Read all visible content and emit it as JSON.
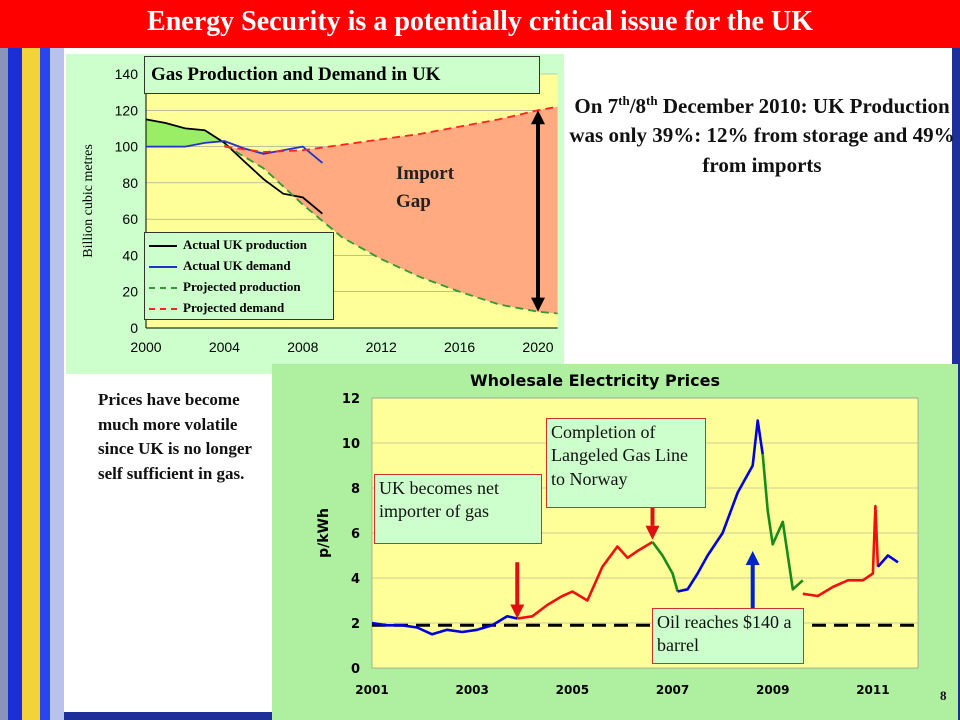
{
  "title": "Energy Security is a potentially critical issue for the UK",
  "note": {
    "pre": "On 7",
    "sup1": "th",
    "slash": "/8",
    "sup2": "th",
    "rest": " December 2010: UK Production was only 39%: 12% from storage and 49% from imports"
  },
  "side_text": "Prices have become much more volatile since UK is no longer self sufficient in gas.",
  "page_number": "8",
  "colors": {
    "title_bg": "#ff0000",
    "chart1_bg": "#ffff99",
    "chart2_bg": "#ffff99",
    "import_gap": "#ffaa80",
    "production_fill": "#99ee66"
  },
  "chart_data": [
    {
      "type": "line",
      "title": "Gas Production and Demand in UK",
      "ylabel": "Billion cubic metres",
      "xlabel": "",
      "xlim": [
        2000,
        2020
      ],
      "ylim": [
        0,
        140
      ],
      "x_ticks": [
        "2000",
        "2004",
        "2008",
        "2012",
        "2016",
        "2020"
      ],
      "y_ticks": [
        "0",
        "20",
        "40",
        "60",
        "80",
        "100",
        "120",
        "140"
      ],
      "legend_position": "bottom-left",
      "annotation": "Import Gap",
      "series": [
        {
          "name": "Actual UK production",
          "color": "#000000",
          "style": "solid",
          "x": [
            2000,
            2001,
            2002,
            2003,
            2004,
            2005,
            2006,
            2007,
            2008,
            2009
          ],
          "y": [
            115,
            113,
            110,
            109,
            102,
            92,
            82,
            74,
            72,
            63
          ]
        },
        {
          "name": "Actual UK demand",
          "color": "#2233cc",
          "style": "solid",
          "x": [
            2000,
            2001,
            2002,
            2003,
            2004,
            2005,
            2006,
            2007,
            2008,
            2009
          ],
          "y": [
            100,
            100,
            100,
            102,
            103,
            99,
            96,
            98,
            100,
            91
          ]
        },
        {
          "name": "Projected production",
          "color": "#339933",
          "style": "dashed",
          "x": [
            2004,
            2006,
            2008,
            2010,
            2012,
            2014,
            2016,
            2018,
            2020,
            2021
          ],
          "y": [
            101,
            88,
            68,
            50,
            38,
            28,
            20,
            13,
            9,
            8
          ]
        },
        {
          "name": "Projected demand",
          "color": "#ff2222",
          "style": "dashed",
          "x": [
            2004,
            2006,
            2008,
            2010,
            2012,
            2014,
            2016,
            2018,
            2020,
            2021
          ],
          "y": [
            100,
            97,
            98,
            101,
            104,
            107,
            111,
            115,
            120,
            122
          ]
        }
      ]
    },
    {
      "type": "line",
      "title": "Wholesale Electricity Prices",
      "ylabel": "p/kWh",
      "xlabel": "",
      "xlim": [
        2001,
        2011.9
      ],
      "ylim": [
        0,
        12
      ],
      "x_ticks": [
        "2001",
        "2003",
        "2005",
        "2007",
        "2009",
        "2011"
      ],
      "y_ticks": [
        "0",
        "2",
        "4",
        "6",
        "8",
        "10",
        "12"
      ],
      "reference_line": 1.9,
      "annotations": [
        {
          "text": "UK becomes net importer of gas",
          "x": 2003.9,
          "arrow": "down"
        },
        {
          "text": "Completion of Langeled Gas Line to Norway",
          "x": 2006.6,
          "arrow": "down"
        },
        {
          "text": "Oil reaches $140 a barrel",
          "x": 2008.6,
          "arrow": "up"
        }
      ],
      "series": [
        {
          "color": "#0000dd",
          "x": [
            2001,
            2001.3,
            2001.6,
            2001.9,
            2002.2,
            2002.5,
            2002.8,
            2003.1,
            2003.4,
            2003.7,
            2003.9
          ],
          "y": [
            2.0,
            1.9,
            1.9,
            1.8,
            1.5,
            1.7,
            1.6,
            1.7,
            1.9,
            2.3,
            2.2
          ]
        },
        {
          "color": "#ee1111",
          "x": [
            2003.9,
            2004.2,
            2004.5,
            2004.8,
            2005.0,
            2005.3,
            2005.6,
            2005.9,
            2006.1,
            2006.3,
            2006.6
          ],
          "y": [
            2.2,
            2.3,
            2.8,
            3.2,
            3.4,
            3.0,
            4.5,
            5.4,
            4.9,
            5.2,
            5.6
          ]
        },
        {
          "color": "#1a8a1a",
          "x": [
            2006.6,
            2006.8,
            2007.0,
            2007.1
          ],
          "y": [
            5.6,
            5.0,
            4.2,
            3.4
          ]
        },
        {
          "color": "#0000dd",
          "x": [
            2007.1,
            2007.3,
            2007.5,
            2007.7,
            2008.0,
            2008.3,
            2008.6,
            2008.7,
            2008.8
          ],
          "y": [
            3.4,
            3.5,
            4.2,
            5.0,
            6.0,
            7.8,
            9.0,
            11.0,
            9.5
          ]
        },
        {
          "color": "#1a8a1a",
          "x": [
            2008.8,
            2008.9,
            2009.0,
            2009.2,
            2009.4,
            2009.6
          ],
          "y": [
            9.5,
            7.0,
            5.5,
            6.5,
            3.5,
            3.9
          ]
        },
        {
          "color": "#ee1111",
          "x": [
            2009.6,
            2009.9,
            2010.2,
            2010.5,
            2010.8,
            2011.0,
            2011.05,
            2011.1
          ],
          "y": [
            3.3,
            3.2,
            3.6,
            3.9,
            3.9,
            4.2,
            7.2,
            4.5
          ]
        },
        {
          "color": "#0000dd",
          "x": [
            2011.1,
            2011.3,
            2011.5
          ],
          "y": [
            4.5,
            5.0,
            4.7
          ]
        }
      ]
    }
  ]
}
